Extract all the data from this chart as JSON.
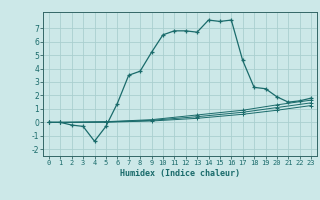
{
  "title": "",
  "xlabel": "Humidex (Indice chaleur)",
  "bg_color": "#cce8e8",
  "line_color": "#1a6b6b",
  "grid_color": "#aacfcf",
  "xlim": [
    -0.5,
    23.5
  ],
  "ylim": [
    -2.5,
    8.2
  ],
  "xticks": [
    0,
    1,
    2,
    3,
    4,
    5,
    6,
    7,
    8,
    9,
    10,
    11,
    12,
    13,
    14,
    15,
    16,
    17,
    18,
    19,
    20,
    21,
    22,
    23
  ],
  "yticks": [
    -2,
    -1,
    0,
    1,
    2,
    3,
    4,
    5,
    6,
    7
  ],
  "series": [
    [
      0,
      0.0
    ],
    [
      1,
      0.0
    ],
    [
      2,
      -0.2
    ],
    [
      3,
      -0.3
    ],
    [
      4,
      -1.4
    ],
    [
      5,
      -0.3
    ],
    [
      6,
      1.4
    ],
    [
      7,
      3.5
    ],
    [
      8,
      3.8
    ],
    [
      9,
      5.2
    ],
    [
      10,
      6.5
    ],
    [
      11,
      6.8
    ],
    [
      12,
      6.8
    ],
    [
      13,
      6.7
    ],
    [
      14,
      7.6
    ],
    [
      15,
      7.5
    ],
    [
      16,
      7.6
    ],
    [
      17,
      4.6
    ],
    [
      18,
      2.6
    ],
    [
      19,
      2.5
    ],
    [
      20,
      1.9
    ],
    [
      21,
      1.5
    ],
    [
      22,
      1.6
    ],
    [
      23,
      1.8
    ]
  ],
  "series2": [
    [
      0,
      0.0
    ],
    [
      1,
      0.0
    ],
    [
      5,
      0.05
    ],
    [
      9,
      0.2
    ],
    [
      13,
      0.55
    ],
    [
      17,
      0.9
    ],
    [
      20,
      1.3
    ],
    [
      23,
      1.65
    ]
  ],
  "series3": [
    [
      0,
      0.0
    ],
    [
      1,
      0.0
    ],
    [
      5,
      0.03
    ],
    [
      9,
      0.15
    ],
    [
      13,
      0.42
    ],
    [
      17,
      0.75
    ],
    [
      20,
      1.1
    ],
    [
      23,
      1.45
    ]
  ],
  "series4": [
    [
      0,
      0.0
    ],
    [
      1,
      0.0
    ],
    [
      5,
      0.01
    ],
    [
      9,
      0.1
    ],
    [
      13,
      0.3
    ],
    [
      17,
      0.6
    ],
    [
      20,
      0.9
    ],
    [
      23,
      1.25
    ]
  ]
}
